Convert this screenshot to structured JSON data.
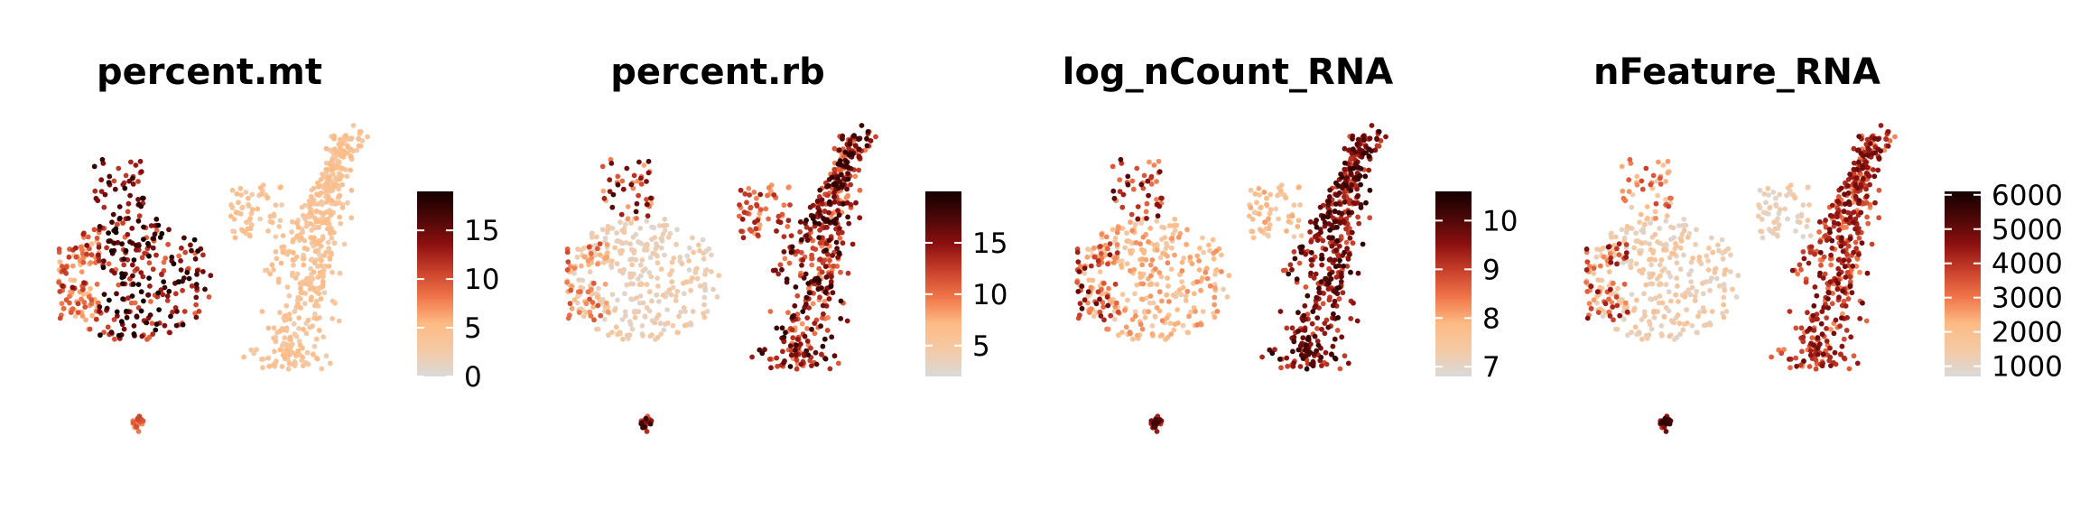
{
  "colors": {
    "low": "#d9d9d9",
    "scale": [
      "#d9d9d9",
      "#f4c9a5",
      "#fdbb84",
      "#f0764a",
      "#c9402b",
      "#8c1010",
      "#4b0707",
      "#150000"
    ]
  },
  "chart_data": [
    {
      "type": "scatter",
      "title": "percent.mt",
      "colorbar": {
        "min": 0,
        "max": 19,
        "ticks": [
          0,
          5,
          10,
          15
        ],
        "tick_labels": [
          "0",
          "5",
          "10",
          "15"
        ]
      },
      "pattern": "mt"
    },
    {
      "type": "scatter",
      "title": "percent.rb",
      "colorbar": {
        "min": 2,
        "max": 20,
        "ticks": [
          5,
          10,
          15
        ],
        "tick_labels": [
          "5",
          "10",
          "15"
        ]
      },
      "pattern": "rb"
    },
    {
      "type": "scatter",
      "title": "log_nCount_RNA",
      "colorbar": {
        "min": 6.8,
        "max": 10.6,
        "ticks": [
          7,
          8,
          9,
          10
        ],
        "tick_labels": [
          "7",
          "8",
          "9",
          "10"
        ]
      },
      "pattern": "count"
    },
    {
      "type": "scatter",
      "title": "nFeature_RNA",
      "colorbar": {
        "min": 700,
        "max": 6100,
        "ticks": [
          1000,
          2000,
          3000,
          4000,
          5000,
          6000
        ],
        "tick_labels": [
          "1000",
          "2000",
          "3000",
          "4000",
          "5000",
          "6000"
        ]
      },
      "pattern": "feature"
    }
  ]
}
